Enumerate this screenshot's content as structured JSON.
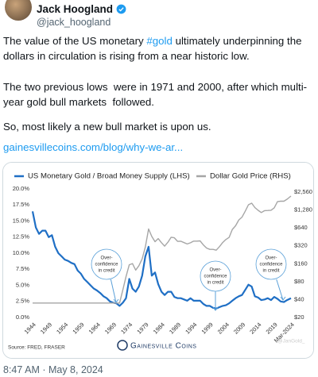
{
  "tweet": {
    "author_name": "Jack Hoogland",
    "author_handle": "@jack_hoogland",
    "text_1_before": "The value of the US monetary ",
    "hashtag": "#gold",
    "text_1_after": " ultimately underpinning the dollars in circulation is rising from a near historic low.",
    "text_2": "The two previous lows  were in 1971 and 2000, after which multi-year gold bull markets  followed.",
    "text_3": "So, most likely a new bull market is upon us.",
    "link": "gainesvillecoins.com/blog/why-we-ar...",
    "timestamp": "8:47 AM · May 8, 2024"
  },
  "chart_data": {
    "type": "line",
    "x": [
      1944,
      1945,
      1946,
      1947,
      1948,
      1949,
      1950,
      1951,
      1952,
      1953,
      1954,
      1955,
      1956,
      1957,
      1958,
      1959,
      1960,
      1961,
      1962,
      1963,
      1964,
      1965,
      1966,
      1967,
      1968,
      1969,
      1970,
      1971,
      1972,
      1973,
      1974,
      1975,
      1976,
      1977,
      1978,
      1979,
      1980,
      1981,
      1982,
      1983,
      1984,
      1985,
      1986,
      1987,
      1988,
      1989,
      1990,
      1991,
      1992,
      1993,
      1994,
      1995,
      1996,
      1997,
      1998,
      1999,
      2000,
      2001,
      2002,
      2003,
      2004,
      2005,
      2006,
      2007,
      2008,
      2009,
      2010,
      2011,
      2012,
      2013,
      2014,
      2015,
      2016,
      2017,
      2018,
      2019,
      2020,
      2021,
      2022,
      2023,
      2024.2
    ],
    "series": [
      {
        "name": "US Monetary Gold / Broad Money Supply (LHS)",
        "color": "#1f6fc5",
        "axis": "y",
        "values": [
          16.5,
          14,
          13,
          13.5,
          13.5,
          12.5,
          12.8,
          11,
          10,
          9.5,
          9,
          8.8,
          8.5,
          8.3,
          7.3,
          6.8,
          6,
          5.5,
          5,
          4.5,
          4.2,
          3.8,
          3.3,
          3,
          2.5,
          2.3,
          2.2,
          1.8,
          2.3,
          3,
          6,
          4.5,
          4,
          4.8,
          6.5,
          9.5,
          11,
          6.5,
          7,
          5.2,
          4,
          3.5,
          4,
          4,
          3.2,
          3,
          3,
          2.8,
          2.6,
          3,
          2.6,
          2.6,
          2.6,
          2.1,
          1.8,
          1.8,
          1.5,
          1.4,
          1.6,
          1.8,
          1.9,
          2.2,
          2.6,
          3,
          3.3,
          3.5,
          4.3,
          5.1,
          4.8,
          3.3,
          3.1,
          2.7,
          2.8,
          3,
          2.7,
          3.2,
          2.9,
          2.5,
          2.4,
          2.7,
          3
        ]
      },
      {
        "name": "Dollar Gold Price (RHS)",
        "color": "#a6a6a6",
        "axis": "y2",
        "values": [
          35,
          35,
          35,
          35,
          35,
          35,
          35,
          35,
          35,
          35,
          35,
          35,
          35,
          35,
          35,
          35,
          35,
          35,
          35,
          35,
          35,
          35,
          35,
          35,
          35,
          35,
          35,
          35,
          58,
          97,
          154,
          161,
          125,
          148,
          193,
          306,
          615,
          460,
          376,
          424,
          361,
          317,
          368,
          447,
          437,
          381,
          383,
          362,
          344,
          360,
          384,
          384,
          388,
          331,
          294,
          279,
          279,
          271,
          310,
          363,
          409,
          444,
          603,
          695,
          872,
          972,
          1224,
          1571,
          1669,
          1411,
          1266,
          1160,
          1251,
          1257,
          1268,
          1393,
          1770,
          1799,
          1800,
          1943,
          2200
        ]
      }
    ],
    "xlim": [
      1944,
      2024.2
    ],
    "xticks": [
      1944,
      1949,
      1954,
      1959,
      1964,
      1969,
      1974,
      1979,
      1984,
      1989,
      1994,
      1999,
      2004,
      2009,
      2014,
      2019,
      {
        "value": 2024.2,
        "label": "Mar-2024"
      }
    ],
    "ylim": [
      0,
      20
    ],
    "yticks": [
      {
        "value": 0,
        "label": "0.0%"
      },
      {
        "value": 2.5,
        "label": "2.5%"
      },
      {
        "value": 5,
        "label": "5.0%"
      },
      {
        "value": 7.5,
        "label": "7.5%"
      },
      {
        "value": 10,
        "label": "10.0%"
      },
      {
        "value": 12.5,
        "label": "12.5%"
      },
      {
        "value": 15,
        "label": "15.0%"
      },
      {
        "value": 17.5,
        "label": "17.5%"
      },
      {
        "value": 20,
        "label": "20.0%"
      }
    ],
    "y2lim": [
      20,
      2900
    ],
    "y2log": true,
    "y2ticks": [
      {
        "value": 20,
        "label": "$20"
      },
      {
        "value": 40,
        "label": "$40"
      },
      {
        "value": 80,
        "label": "$80"
      },
      {
        "value": 160,
        "label": "$160"
      },
      {
        "value": 320,
        "label": "$320"
      },
      {
        "value": 640,
        "label": "$640"
      },
      {
        "value": 1280,
        "label": "$1,280"
      },
      {
        "value": 2560,
        "label": "$2,560"
      }
    ],
    "grid": false,
    "annotations": [
      [
        "Over-",
        "confidence",
        "in credit"
      ],
      [
        "Over-",
        "confidence",
        "in credit"
      ],
      [
        "Over-",
        "confidence",
        "in credit"
      ]
    ],
    "source": "Source: FRED, FRASER",
    "logo_text": "Gainesville Coins",
    "watermark": "@JanGold_"
  }
}
